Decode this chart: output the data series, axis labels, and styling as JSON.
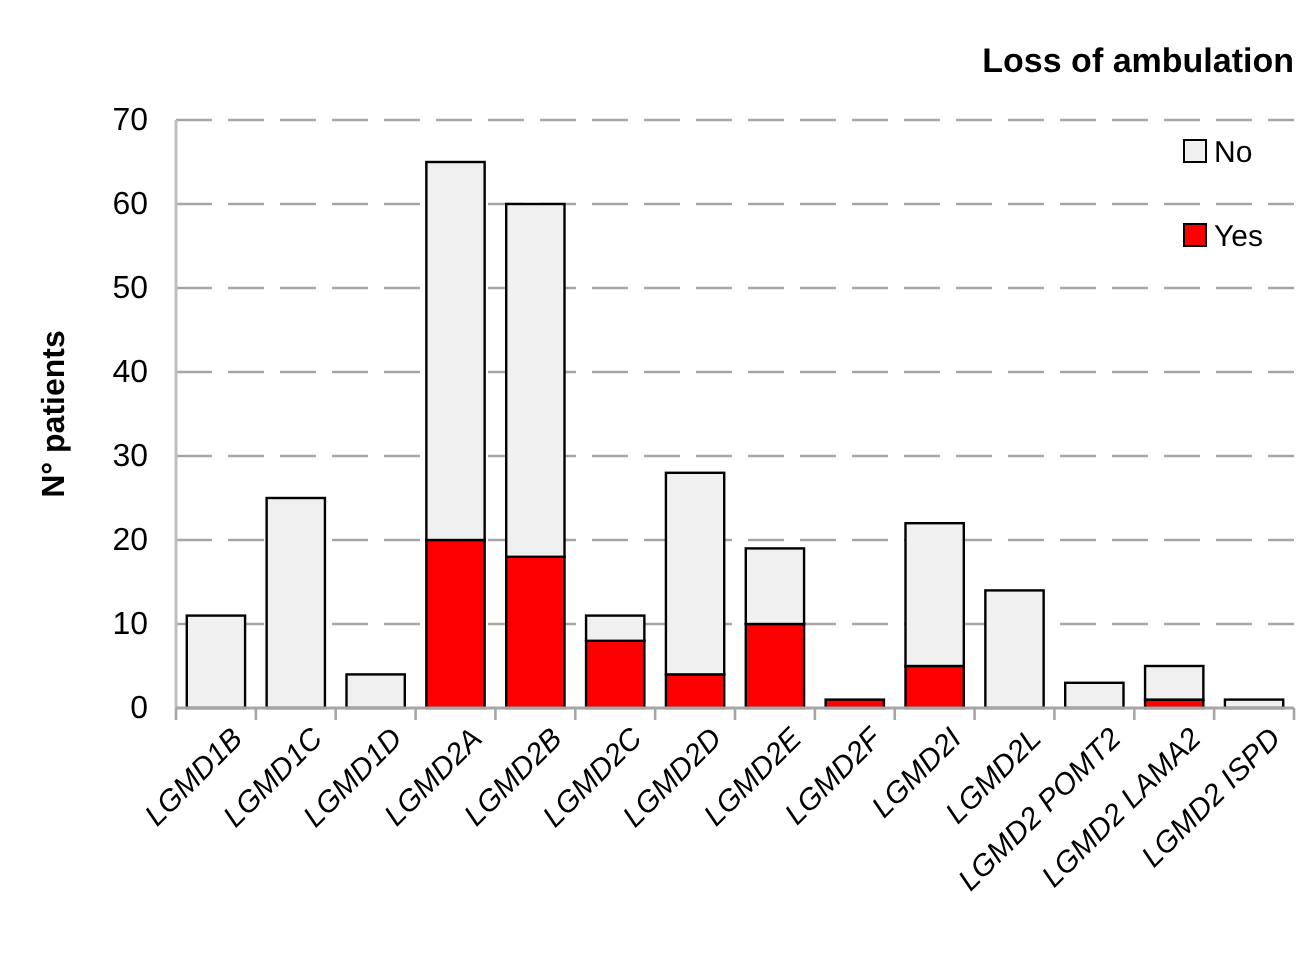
{
  "chart_data": {
    "type": "bar",
    "title": "Loss of ambulation",
    "ylabel": "N° patients",
    "categories": [
      "LGMD1B",
      "LGMD1C",
      "LGMD1D",
      "LGMD2A",
      "LGMD2B",
      "LGMD2C",
      "LGMD2D",
      "LGMD2E",
      "LGMD2F",
      "LGMD2I",
      "LGMD2L",
      "LGMD2 POMT2",
      "LGMD2 LAMA2",
      "LGMD2 ISPD"
    ],
    "series": [
      {
        "name": "Yes",
        "color": "#ff0000",
        "values": [
          0,
          0,
          0,
          20,
          18,
          8,
          4,
          10,
          1,
          5,
          0,
          0,
          1,
          0
        ]
      },
      {
        "name": "No",
        "color": "#f0f0f0",
        "values": [
          11,
          25,
          4,
          45,
          42,
          3,
          24,
          9,
          0,
          17,
          14,
          3,
          4,
          1
        ]
      }
    ],
    "stacked": true,
    "ylim": [
      0,
      70
    ],
    "yticks": [
      0,
      10,
      20,
      30,
      40,
      50,
      60,
      70
    ],
    "grid": "y",
    "legend": "top right"
  }
}
